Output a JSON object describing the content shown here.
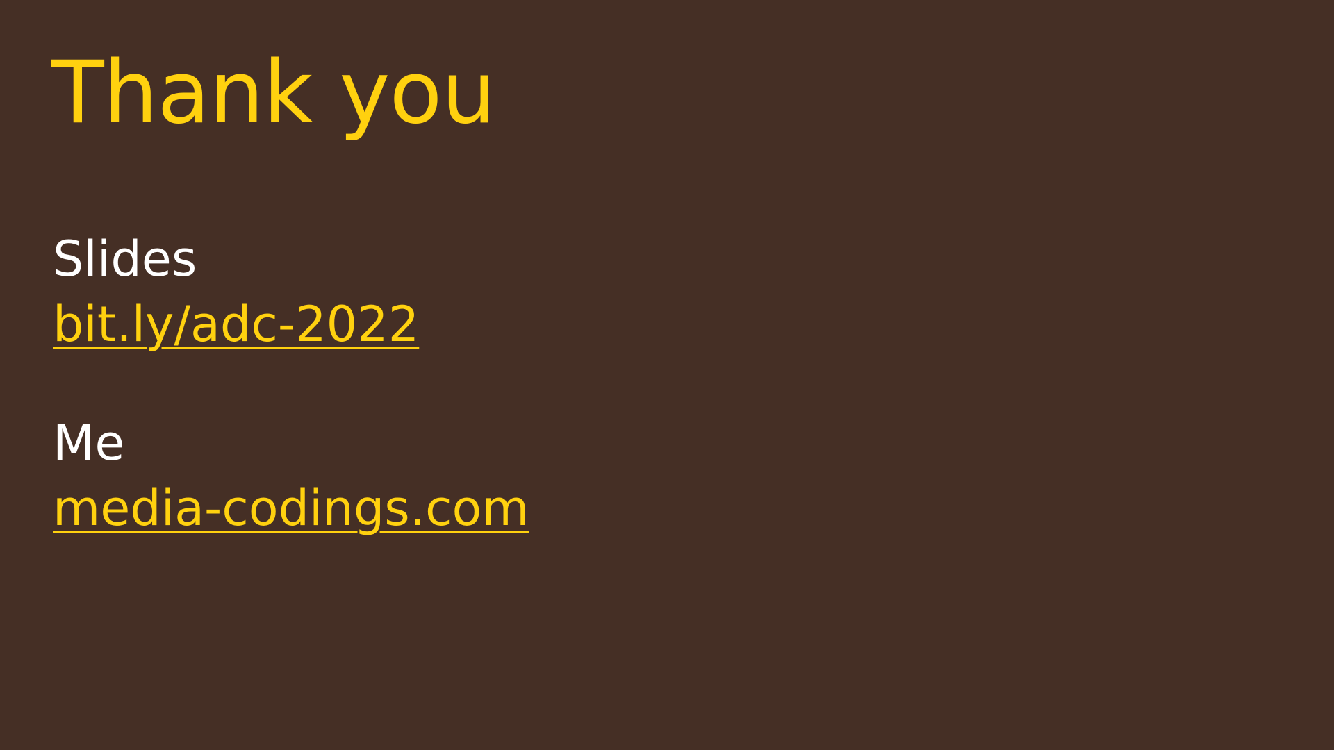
{
  "slide": {
    "title": "Thank you",
    "sections": [
      {
        "label": "Slides",
        "link": "bit.ly/adc-2022"
      },
      {
        "label": "Me",
        "link": "media-codings.com"
      }
    ]
  },
  "colors": {
    "background": "#452f25",
    "accent": "#ffd10f",
    "text": "#ffffff"
  }
}
